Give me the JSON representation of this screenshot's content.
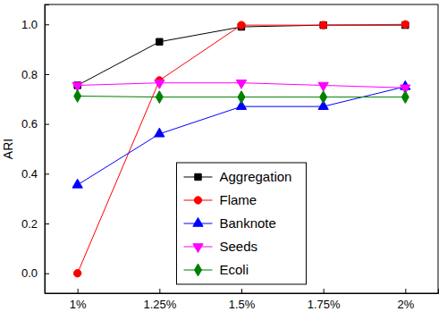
{
  "chart_data": {
    "type": "line",
    "y_label": "ARI",
    "categories": [
      "1%",
      "1.25%",
      "1.5%",
      "1.75%",
      "2%"
    ],
    "series": [
      {
        "name": "Aggregation",
        "color": "#000000",
        "marker": "square",
        "values": [
          0.755,
          0.93,
          0.99,
          0.997,
          0.997
        ]
      },
      {
        "name": "Flame",
        "color": "#ff0000",
        "marker": "circle",
        "values": [
          0,
          0.775,
          0.997,
          0.997,
          1.0
        ]
      },
      {
        "name": "Banknote",
        "color": "#0000ff",
        "marker": "triangle",
        "values": [
          0.355,
          0.56,
          0.67,
          0.67,
          0.75
        ]
      },
      {
        "name": "Seeds",
        "color": "#ff00ff",
        "marker": "triangle-down",
        "values": [
          0.755,
          0.765,
          0.765,
          0.755,
          0.745
        ]
      },
      {
        "name": "Ecoli",
        "color": "#008000",
        "marker": "diamond",
        "values": [
          0.712,
          0.708,
          0.708,
          0.708,
          0.708
        ]
      }
    ],
    "ylim": [
      -0.08,
      1.08
    ],
    "yticks": [
      {
        "value": 0,
        "label": "0.0"
      },
      0.2,
      0.4,
      0.6,
      0.8,
      {
        "value": 1,
        "label": "1.0"
      }
    ],
    "grid": false,
    "legend": "lower center"
  }
}
